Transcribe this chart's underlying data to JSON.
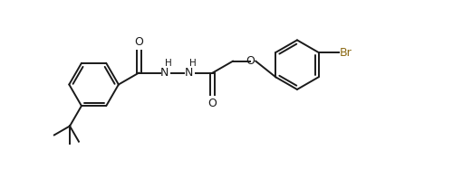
{
  "bg_color": "#ffffff",
  "line_color": "#1a1a1a",
  "text_color": "#1a1a1a",
  "br_color": "#8B6914",
  "figsize": [
    5.0,
    1.87
  ],
  "dpi": 100,
  "lw": 1.4,
  "ring_r": 0.55,
  "xlim": [
    0,
    10
  ],
  "ylim": [
    0,
    3.74
  ]
}
